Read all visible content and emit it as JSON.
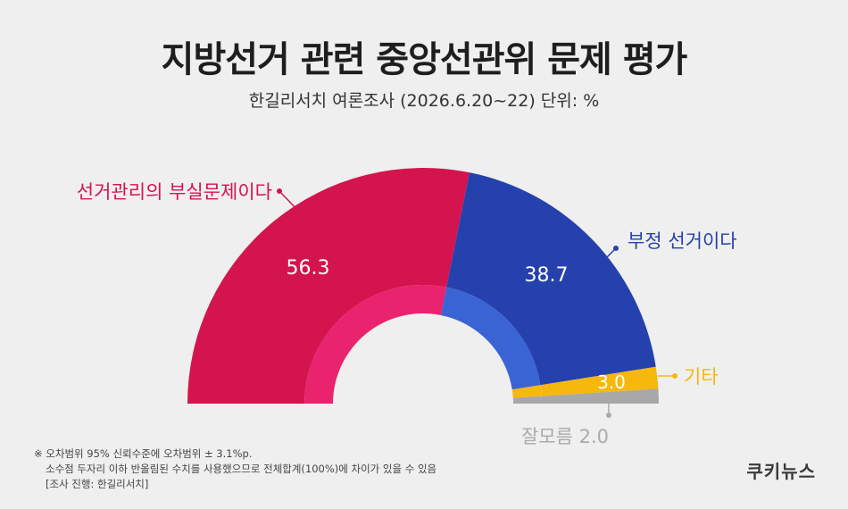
{
  "title": "지방선거 관련 중앙선관위 문제 평가",
  "subtitle": "한길리서치 여론조사 (2026.6.20~22) 단위: %",
  "chart_data": {
    "type": "pie",
    "variant": "semi-donut",
    "title": "지방선거 관련 중앙선관위 문제 평가",
    "subtitle": "한길리서치 여론조사 (2026.6.20~22) 단위: %",
    "unit": "%",
    "series": [
      {
        "name": "선거관리의 부실문제이다",
        "value": 56.3,
        "label": "56.3",
        "color": "#d4144f",
        "inner_color": "#e9236e",
        "label_color": "#d4144f"
      },
      {
        "name": "부정 선거이다",
        "value": 38.7,
        "label": "38.7",
        "color": "#2541ad",
        "inner_color": "#3a63d4",
        "label_color": "#2541ad"
      },
      {
        "name": "기타",
        "value": 3.0,
        "label": "3.0",
        "color": "#f6b80c",
        "inner_color": "#f6b80c",
        "label_color": "#f6b80c"
      },
      {
        "name": "잘모름",
        "value": 2.0,
        "label": "2.0",
        "color": "#a8a8a8",
        "inner_color": "#a8a8a8",
        "label_color": "#aaaaaa"
      }
    ]
  },
  "notes": [
    "※ 오차범위 95% 신뢰수준에 오차범위 ± 3.1%p.",
    "소수점 두자리 이하 반올림된 수치를 사용했으므로 전체합계(100%)에 차이가 있을 수 있음",
    "[조사 진행: 한길리서치]"
  ],
  "brand": "쿠키뉴스"
}
